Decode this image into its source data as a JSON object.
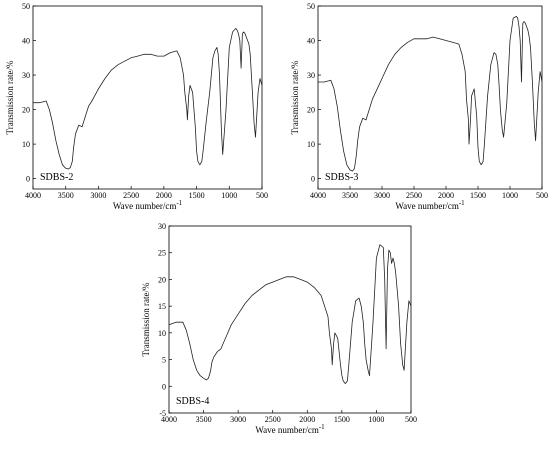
{
  "chart_data": [
    {
      "type": "line",
      "annotation": "SDBS-2",
      "xlabel": "Wave number/cm",
      "xlabel_sup": "-1",
      "ylabel": "Transmission rate/%",
      "xlim": [
        4000,
        500
      ],
      "ylim": [
        -3,
        50
      ],
      "xticks": [
        "4000",
        "3500",
        "3000",
        "2500",
        "2000",
        "1500",
        "1000",
        "500"
      ],
      "yticks": [
        "0",
        "10",
        "20",
        "30",
        "40",
        "50"
      ],
      "x": [
        4000,
        3900,
        3800,
        3750,
        3700,
        3650,
        3600,
        3550,
        3500,
        3460,
        3430,
        3400,
        3380,
        3350,
        3300,
        3250,
        3200,
        3150,
        3100,
        3000,
        2900,
        2800,
        2700,
        2600,
        2500,
        2400,
        2300,
        2200,
        2100,
        2000,
        1900,
        1800,
        1750,
        1700,
        1680,
        1650,
        1640,
        1620,
        1600,
        1560,
        1520,
        1500,
        1480,
        1450,
        1420,
        1400,
        1350,
        1300,
        1250,
        1220,
        1190,
        1170,
        1150,
        1120,
        1100,
        1050,
        1000,
        950,
        900,
        880,
        860,
        840,
        820,
        800,
        780,
        760,
        740,
        720,
        700,
        680,
        650,
        620,
        600,
        560,
        530,
        500
      ],
      "y": [
        22,
        22,
        22.5,
        20,
        16,
        11,
        7,
        4,
        3,
        2.8,
        3.2,
        5,
        9,
        13,
        15.5,
        15,
        18,
        21,
        22.5,
        26,
        29,
        31.5,
        33,
        34,
        35,
        35.5,
        36,
        36,
        35.5,
        35.5,
        36.5,
        37,
        35,
        30,
        25,
        20,
        17,
        24,
        27,
        25,
        15,
        8,
        5,
        4,
        5,
        8,
        17,
        25,
        35,
        37,
        38,
        36,
        30,
        14,
        7,
        20,
        38,
        42.5,
        43.5,
        43,
        42,
        40,
        32,
        42,
        42.5,
        42,
        41,
        40,
        39,
        36,
        26,
        16,
        12,
        25,
        29,
        27
      ]
    },
    {
      "type": "line",
      "annotation": "SDBS-3",
      "xlabel": "Wave number/cm",
      "xlabel_sup": "-1",
      "ylabel": "Transmission rate/%",
      "xlim": [
        4000,
        500
      ],
      "ylim": [
        -3,
        50
      ],
      "xticks": [
        "4000",
        "3500",
        "3000",
        "2500",
        "2000",
        "1500",
        "1000",
        "500"
      ],
      "yticks": [
        "0",
        "10",
        "20",
        "30",
        "40",
        "50"
      ],
      "x": [
        4000,
        3900,
        3800,
        3750,
        3700,
        3650,
        3600,
        3550,
        3500,
        3460,
        3430,
        3400,
        3380,
        3350,
        3300,
        3250,
        3200,
        3150,
        3100,
        3000,
        2900,
        2800,
        2700,
        2600,
        2500,
        2400,
        2300,
        2200,
        2100,
        2000,
        1900,
        1800,
        1750,
        1700,
        1680,
        1650,
        1640,
        1620,
        1600,
        1560,
        1520,
        1500,
        1480,
        1450,
        1420,
        1400,
        1350,
        1300,
        1250,
        1220,
        1190,
        1170,
        1150,
        1120,
        1100,
        1050,
        1000,
        950,
        900,
        880,
        860,
        840,
        820,
        800,
        780,
        760,
        740,
        720,
        700,
        680,
        650,
        620,
        600,
        560,
        530,
        500
      ],
      "y": [
        28,
        28,
        28.5,
        26,
        21,
        14,
        8,
        4,
        2.5,
        2.2,
        3,
        7,
        11,
        15,
        17.5,
        17,
        20,
        23,
        25,
        29,
        33,
        36,
        38,
        39.5,
        40.5,
        40.5,
        40.5,
        41,
        40.5,
        40,
        39.5,
        39,
        36,
        31,
        23,
        17,
        10,
        16,
        24,
        26,
        18,
        9,
        5,
        4,
        5,
        10,
        24,
        33,
        36.5,
        36,
        33,
        27,
        20,
        14,
        12,
        22,
        40,
        46.5,
        47,
        46.5,
        44,
        40,
        28,
        45,
        45.5,
        45,
        44,
        43,
        41,
        38,
        28,
        16,
        11,
        25,
        31,
        28
      ]
    },
    {
      "type": "line",
      "annotation": "SDBS-4",
      "xlabel": "Wave number/cm",
      "xlabel_sup": "-1",
      "ylabel": "Transmission rate/%",
      "xlim": [
        4000,
        500
      ],
      "ylim": [
        -5,
        30
      ],
      "xticks": [
        "4000",
        "3500",
        "3000",
        "2500",
        "2000",
        "1500",
        "1000",
        "500"
      ],
      "yticks": [
        "-5",
        "0",
        "5",
        "10",
        "15",
        "20",
        "25",
        "30"
      ],
      "x": [
        4000,
        3900,
        3800,
        3750,
        3700,
        3650,
        3600,
        3550,
        3500,
        3460,
        3430,
        3400,
        3380,
        3350,
        3300,
        3250,
        3200,
        3150,
        3100,
        3000,
        2900,
        2800,
        2700,
        2600,
        2500,
        2400,
        2300,
        2200,
        2100,
        2000,
        1900,
        1800,
        1750,
        1700,
        1680,
        1650,
        1640,
        1620,
        1600,
        1560,
        1520,
        1500,
        1480,
        1450,
        1420,
        1400,
        1350,
        1300,
        1250,
        1220,
        1190,
        1170,
        1150,
        1120,
        1100,
        1050,
        1000,
        950,
        900,
        880,
        860,
        840,
        820,
        800,
        780,
        760,
        740,
        720,
        700,
        680,
        650,
        620,
        600,
        560,
        530,
        500
      ],
      "y": [
        11.5,
        12,
        12,
        10.5,
        8,
        5,
        3,
        2,
        1.5,
        1.2,
        1.5,
        2.8,
        4.5,
        5.5,
        6.5,
        7,
        8.5,
        10,
        11.5,
        13.5,
        15.5,
        17,
        18,
        19,
        19.5,
        20,
        20.5,
        20.5,
        20,
        19.5,
        18.5,
        17,
        15,
        13,
        10,
        7,
        4,
        8,
        10,
        9,
        4,
        2,
        1,
        0.5,
        1,
        4,
        12,
        16,
        16.5,
        15,
        12,
        8,
        5,
        3,
        2,
        12,
        24,
        26.5,
        26,
        20,
        7,
        22,
        25.5,
        25,
        23,
        24,
        23,
        21,
        18,
        15,
        8,
        4,
        3,
        12,
        16,
        15
      ]
    }
  ]
}
